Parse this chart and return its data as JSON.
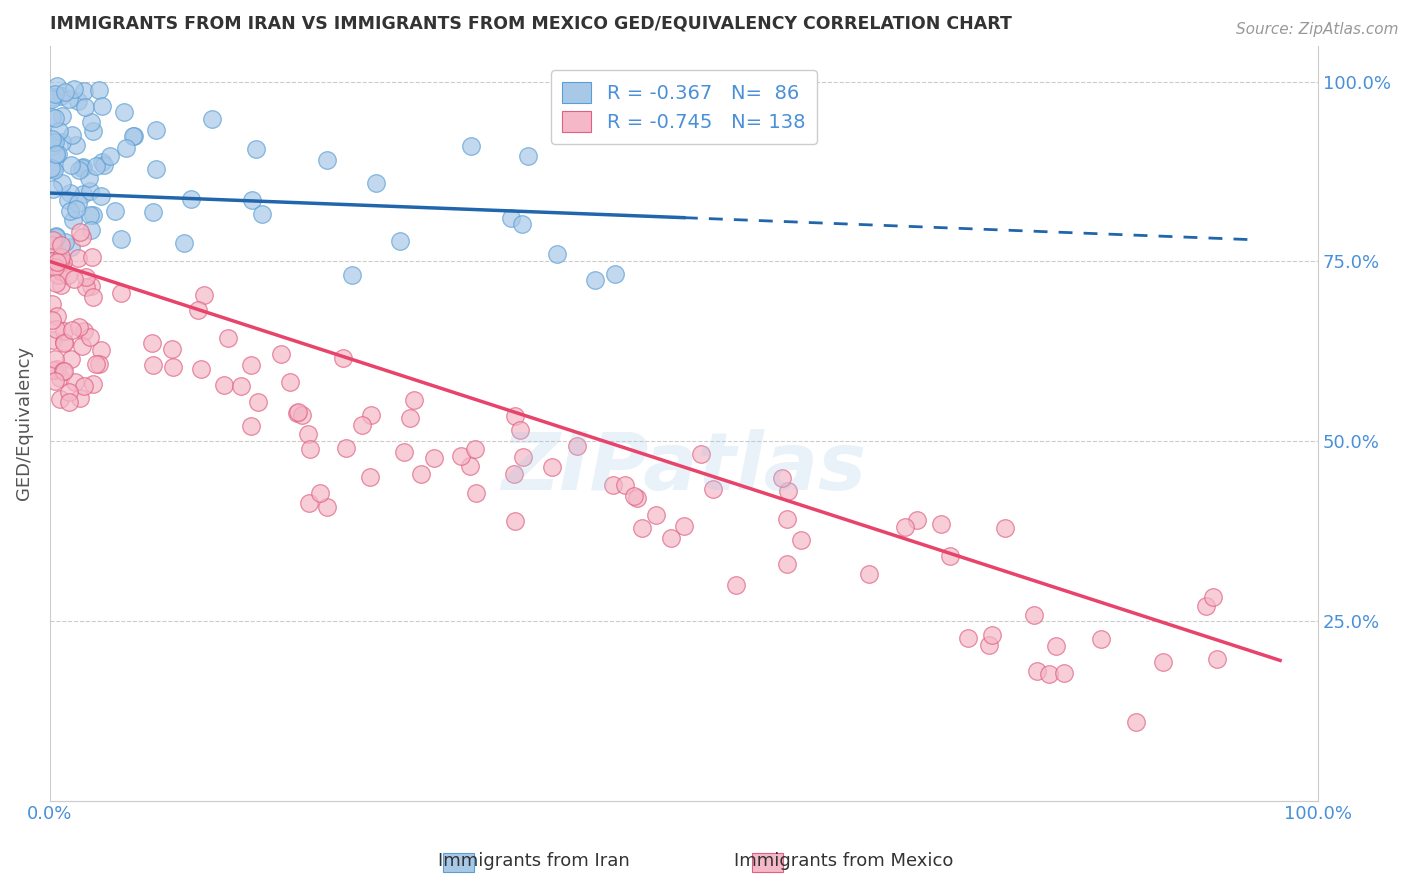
{
  "title": "IMMIGRANTS FROM IRAN VS IMMIGRANTS FROM MEXICO GED/EQUIVALENCY CORRELATION CHART",
  "source": "Source: ZipAtlas.com",
  "ylabel": "GED/Equivalency",
  "iran_R": -0.367,
  "iran_N": 86,
  "mexico_R": -0.745,
  "mexico_N": 138,
  "iran_color": "#a8c8e8",
  "iran_edge_color": "#5a9fd4",
  "mexico_color": "#f4b8c8",
  "mexico_edge_color": "#e06080",
  "iran_line_color": "#2166ac",
  "mexico_line_color": "#e8436a",
  "watermark_color": "#a8c8e8",
  "right_ytick_color": "#4a90d9",
  "xtick_color": "#4a90d9",
  "background_color": "#ffffff",
  "grid_color": "#cccccc",
  "title_color": "#333333",
  "ylabel_color": "#555555",
  "legend_label_color": "#4a90d9"
}
